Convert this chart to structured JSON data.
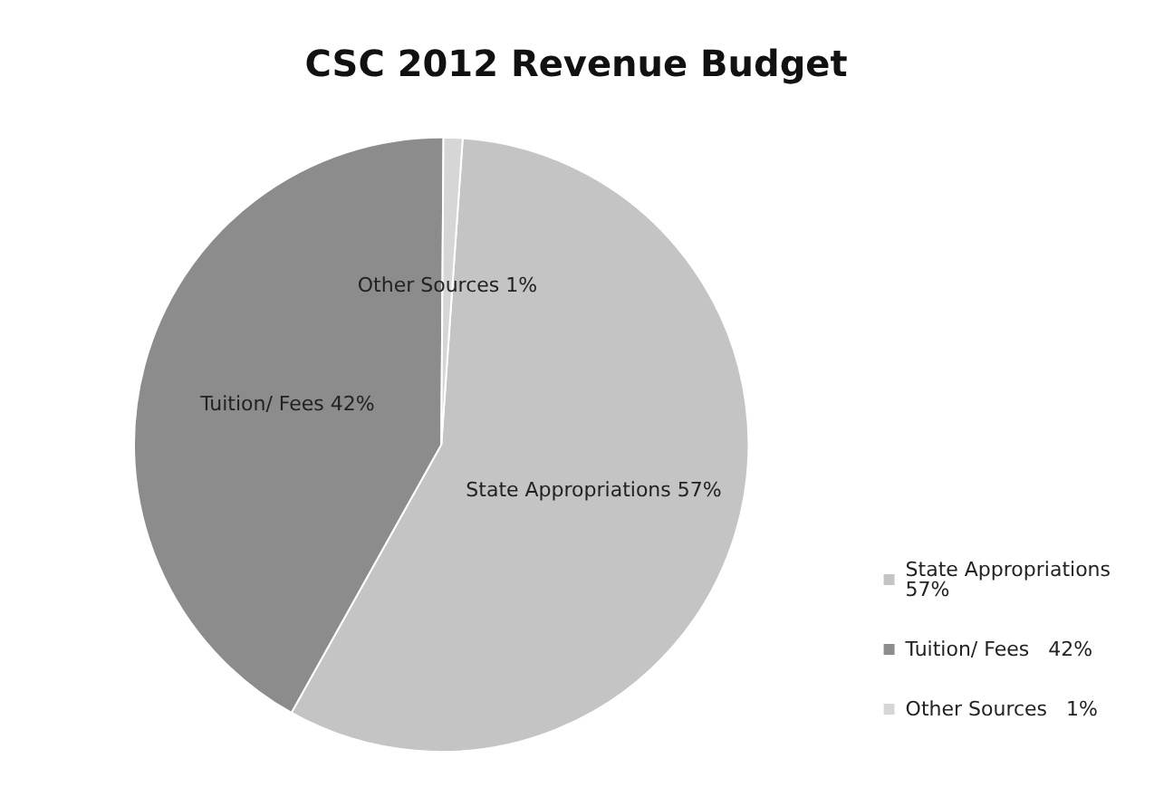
{
  "chart_data": {
    "type": "pie",
    "title": "CSC 2012 Revenue Budget",
    "categories": [
      "State Appropriations",
      "Tuition/ Fees",
      "Other Sources"
    ],
    "values": [
      57,
      42,
      1
    ],
    "colors": [
      "#c4c4c4",
      "#8c8c8c",
      "#d6d6d6"
    ],
    "value_labels": [
      "57%",
      "42%",
      "1%"
    ],
    "legend": "bottom right"
  }
}
